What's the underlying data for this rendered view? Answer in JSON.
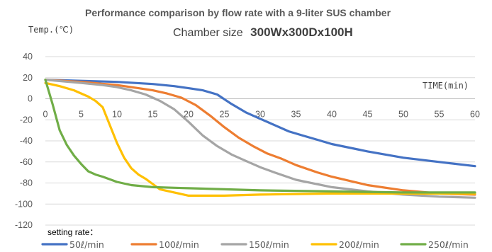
{
  "chart_data": {
    "type": "line",
    "title": "Performance comparison by flow rate with a 9-liter SUS chamber",
    "subtitle_label": "Chamber size",
    "subtitle_value": "300Wx300Dx100H",
    "ylabel": "Temp.(℃)",
    "xlabel": "TIME(min)",
    "xlim": [
      0,
      60
    ],
    "ylim": [
      -120,
      40
    ],
    "x_ticks": [
      "0",
      "5",
      "10",
      "15",
      "20",
      "25",
      "30",
      "35",
      "40",
      "45",
      "50",
      "55",
      "60"
    ],
    "y_ticks": [
      "40",
      "20",
      "0",
      "-20",
      "-40",
      "-60",
      "-80",
      "-100",
      "-120"
    ],
    "grid": true,
    "legend_title": "setting rate：",
    "legend_position": "bottom",
    "series": [
      {
        "name": "50ℓ/min",
        "color": "#4472C4",
        "x": [
          0,
          5,
          10,
          15,
          18,
          20,
          22,
          24,
          26,
          28,
          30,
          32,
          34,
          36,
          38,
          40,
          45,
          50,
          55,
          60
        ],
        "y": [
          18,
          17,
          16,
          14,
          12,
          10,
          8,
          4,
          -5,
          -13,
          -19,
          -25,
          -31,
          -35,
          -39,
          -43,
          -50,
          -56,
          -60,
          -64
        ]
      },
      {
        "name": "100ℓ/min",
        "color": "#ED7D31",
        "x": [
          0,
          5,
          10,
          13,
          15,
          17,
          19,
          21,
          23,
          25,
          27,
          29,
          31,
          33,
          35,
          38,
          40,
          45,
          50,
          55,
          60
        ],
        "y": [
          18,
          16,
          13,
          10,
          8,
          5,
          1,
          -6,
          -16,
          -27,
          -37,
          -45,
          -52,
          -57,
          -63,
          -70,
          -74,
          -82,
          -87,
          -90,
          -91
        ]
      },
      {
        "name": "150ℓ/min",
        "color": "#A5A5A5",
        "x": [
          0,
          5,
          8,
          10,
          12,
          14,
          16,
          18,
          20,
          22,
          24,
          26,
          28,
          30,
          32,
          35,
          40,
          45,
          50,
          55,
          60
        ],
        "y": [
          18,
          15,
          13,
          11,
          8,
          4,
          -2,
          -10,
          -22,
          -35,
          -45,
          -53,
          -59,
          -65,
          -70,
          -77,
          -84,
          -88,
          -91,
          -93,
          -94
        ]
      },
      {
        "name": "200ℓ/min",
        "color": "#FFC000",
        "x": [
          0,
          2,
          4,
          6,
          7,
          8,
          9,
          10,
          11,
          12,
          13,
          14,
          15,
          16,
          18,
          20,
          25,
          30,
          40,
          50,
          60
        ],
        "y": [
          15,
          12,
          8,
          2,
          -2,
          -8,
          -25,
          -42,
          -56,
          -66,
          -72,
          -76,
          -81,
          -86,
          -89,
          -92,
          -92,
          -91,
          -90,
          -90,
          -90
        ]
      },
      {
        "name": "250ℓ/min",
        "color": "#70AD47",
        "x": [
          0,
          1,
          2,
          3,
          4,
          5,
          6,
          7,
          8,
          10,
          12,
          15,
          20,
          25,
          30,
          40,
          50,
          60
        ],
        "y": [
          18,
          -5,
          -30,
          -44,
          -54,
          -62,
          -69,
          -72,
          -74,
          -79,
          -82,
          -84,
          -85,
          -86,
          -87,
          -88,
          -89,
          -89
        ]
      }
    ]
  }
}
